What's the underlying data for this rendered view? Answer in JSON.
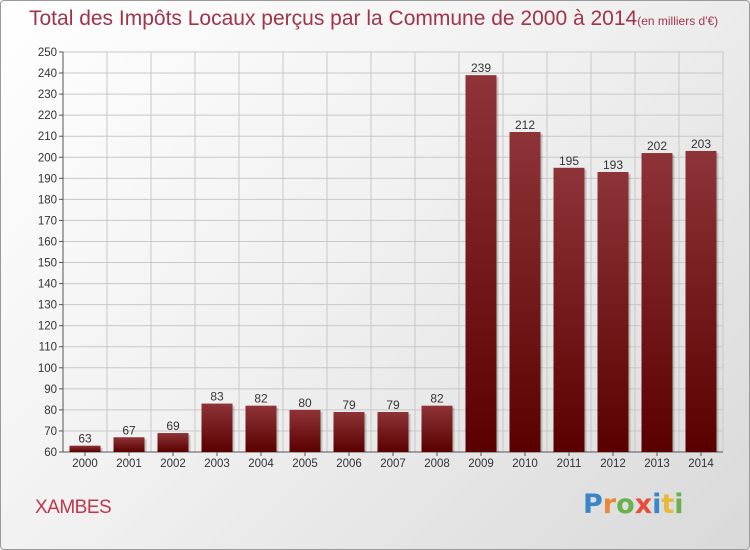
{
  "title": "Total des Impôts Locaux perçus par la Commune de 2000 à 2014",
  "title_unit": "(en milliers d'€)",
  "commune": "XAMBES",
  "logo": {
    "letters": [
      "P",
      "r",
      "o",
      "x",
      "i",
      "t",
      "i"
    ],
    "colors": [
      "#3a86c8",
      "#e8883a",
      "#6ab04c",
      "#e84c3c",
      "#3a86c8",
      "#e8b83a",
      "#6ab04c"
    ]
  },
  "colors": {
    "title": "#a0344a",
    "bar_top": "#8e3438",
    "bar_bottom": "#5a0000",
    "grid": "#c8c8c8"
  },
  "chart_data": {
    "type": "bar",
    "title": "Total des Impôts Locaux perçus par la Commune de 2000 à 2014",
    "categories": [
      "2000",
      "2001",
      "2002",
      "2003",
      "2004",
      "2005",
      "2006",
      "2007",
      "2008",
      "2009",
      "2010",
      "2011",
      "2012",
      "2013",
      "2014"
    ],
    "values": [
      63,
      67,
      69,
      83,
      82,
      80,
      79,
      79,
      82,
      239,
      212,
      195,
      193,
      202,
      203
    ],
    "ylim": [
      60,
      250
    ],
    "yticks": [
      60,
      70,
      80,
      90,
      100,
      110,
      120,
      130,
      140,
      150,
      160,
      170,
      180,
      190,
      200,
      210,
      220,
      230,
      240,
      250
    ],
    "grid": true,
    "xlabel": "",
    "ylabel": ""
  }
}
